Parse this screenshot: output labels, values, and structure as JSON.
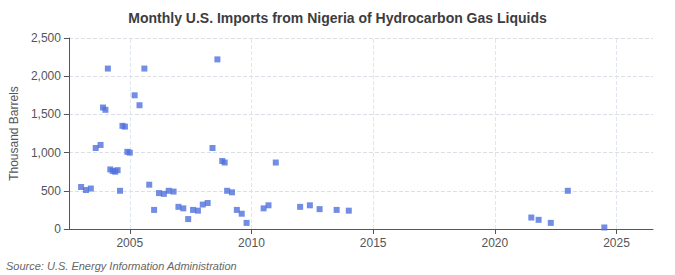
{
  "chart_data": {
    "type": "scatter",
    "title": "Monthly U.S. Imports from Nigeria of Hydrocarbon Gas Liquids",
    "ylabel": "Thousand Barrels",
    "annotations": [
      "Source: U.S. Energy Information Administration"
    ],
    "marker": "square",
    "grid": true,
    "xlim": [
      2002.5,
      2026.5
    ],
    "xticks": [
      2005,
      2010,
      2015,
      2020,
      2025
    ],
    "ylim": [
      0,
      2500
    ],
    "yticks": [
      0,
      500,
      {
        "value": 1000,
        "label": "1,000"
      },
      {
        "value": 1500,
        "label": "1,500"
      },
      {
        "value": 2000,
        "label": "2,000"
      },
      {
        "value": 2500,
        "label": "2,500"
      }
    ],
    "x": [
      2003.0,
      2003.2,
      2003.4,
      2003.6,
      2003.8,
      2003.9,
      2004.0,
      2004.1,
      2004.2,
      2004.3,
      2004.4,
      2004.5,
      2004.6,
      2004.7,
      2004.8,
      2004.9,
      2005.0,
      2005.2,
      2005.4,
      2005.6,
      2005.8,
      2006.0,
      2006.2,
      2006.4,
      2006.6,
      2006.8,
      2007.0,
      2007.2,
      2007.4,
      2007.6,
      2007.8,
      2008.0,
      2008.2,
      2008.4,
      2008.6,
      2008.8,
      2008.9,
      2009.0,
      2009.2,
      2009.4,
      2009.6,
      2009.8,
      2010.5,
      2010.7,
      2011.0,
      2012.0,
      2012.4,
      2012.8,
      2013.5,
      2014.0,
      2021.5,
      2021.8,
      2022.3,
      2023.0,
      2024.5
    ],
    "values": [
      550,
      510,
      530,
      1060,
      1100,
      1590,
      1560,
      2100,
      780,
      760,
      750,
      770,
      500,
      1350,
      1340,
      1010,
      1000,
      1750,
      1620,
      2100,
      580,
      250,
      470,
      460,
      500,
      490,
      290,
      270,
      130,
      250,
      240,
      320,
      340,
      1060,
      2220,
      890,
      870,
      500,
      480,
      250,
      200,
      80,
      270,
      310,
      870,
      290,
      310,
      260,
      250,
      240,
      150,
      120,
      80,
      500,
      20
    ]
  }
}
